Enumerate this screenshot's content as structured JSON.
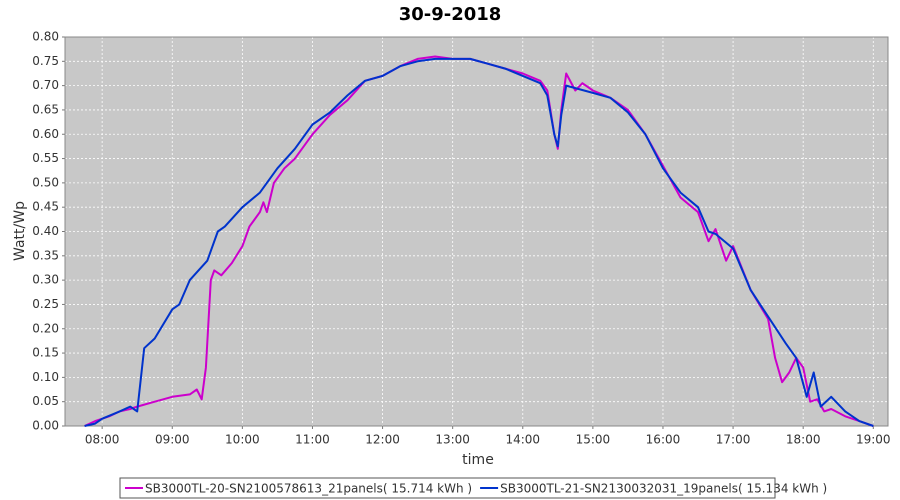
{
  "chart_data": {
    "type": "line",
    "title": "30-9-2018",
    "xlabel": "time",
    "ylabel": "Watt/Wp",
    "xlim": [
      7.47,
      19.21
    ],
    "ylim": [
      0,
      0.8
    ],
    "grid": true,
    "xticks": [
      {
        "value": 8,
        "label": "08:00"
      },
      {
        "value": 9,
        "label": "09:00"
      },
      {
        "value": 10,
        "label": "10:00"
      },
      {
        "value": 11,
        "label": "11:00"
      },
      {
        "value": 12,
        "label": "12:00"
      },
      {
        "value": 13,
        "label": "13:00"
      },
      {
        "value": 14,
        "label": "14:00"
      },
      {
        "value": 15,
        "label": "15:00"
      },
      {
        "value": 16,
        "label": "16:00"
      },
      {
        "value": 17,
        "label": "17:00"
      },
      {
        "value": 18,
        "label": "18:00"
      },
      {
        "value": 19,
        "label": "19:00"
      }
    ],
    "yticks": [
      {
        "value": 0,
        "label": "0.00"
      },
      {
        "value": 0.05,
        "label": "0.05"
      },
      {
        "value": 0.1,
        "label": "0.10"
      },
      {
        "value": 0.15,
        "label": "0.15"
      },
      {
        "value": 0.2,
        "label": "0.20"
      },
      {
        "value": 0.25,
        "label": "0.25"
      },
      {
        "value": 0.3,
        "label": "0.30"
      },
      {
        "value": 0.35,
        "label": "0.35"
      },
      {
        "value": 0.4,
        "label": "0.40"
      },
      {
        "value": 0.45,
        "label": "0.45"
      },
      {
        "value": 0.5,
        "label": "0.50"
      },
      {
        "value": 0.55,
        "label": "0.55"
      },
      {
        "value": 0.6,
        "label": "0.60"
      },
      {
        "value": 0.65,
        "label": "0.65"
      },
      {
        "value": 0.7,
        "label": "0.70"
      },
      {
        "value": 0.75,
        "label": "0.75"
      },
      {
        "value": 0.8,
        "label": "0.80"
      }
    ],
    "series": [
      {
        "name": "SB3000TL-20-SN2100578613_21panels( 15.714 kWh )",
        "color": "#cc00cc",
        "x": [
          7.75,
          7.9,
          8.0,
          8.1,
          8.25,
          8.4,
          8.5,
          8.75,
          9.0,
          9.25,
          9.35,
          9.42,
          9.48,
          9.55,
          9.6,
          9.7,
          9.85,
          10.0,
          10.1,
          10.25,
          10.3,
          10.35,
          10.45,
          10.6,
          10.75,
          11.0,
          11.25,
          11.5,
          11.75,
          12.0,
          12.25,
          12.5,
          12.75,
          13.0,
          13.25,
          13.5,
          13.75,
          14.0,
          14.25,
          14.35,
          14.45,
          14.5,
          14.55,
          14.62,
          14.75,
          14.85,
          15.0,
          15.25,
          15.5,
          15.75,
          16.0,
          16.25,
          16.5,
          16.65,
          16.75,
          16.9,
          17.0,
          17.25,
          17.5,
          17.6,
          17.7,
          17.8,
          17.9,
          18.0,
          18.1,
          18.2,
          18.3,
          18.4,
          18.6,
          18.8,
          19.0
        ],
        "values": [
          0.0,
          0.01,
          0.015,
          0.02,
          0.03,
          0.035,
          0.04,
          0.05,
          0.06,
          0.065,
          0.075,
          0.055,
          0.12,
          0.3,
          0.32,
          0.31,
          0.335,
          0.37,
          0.41,
          0.44,
          0.46,
          0.44,
          0.5,
          0.53,
          0.55,
          0.6,
          0.64,
          0.67,
          0.71,
          0.72,
          0.74,
          0.755,
          0.76,
          0.755,
          0.755,
          0.745,
          0.735,
          0.725,
          0.71,
          0.69,
          0.6,
          0.57,
          0.65,
          0.725,
          0.69,
          0.705,
          0.69,
          0.675,
          0.65,
          0.6,
          0.535,
          0.47,
          0.44,
          0.38,
          0.405,
          0.34,
          0.37,
          0.28,
          0.22,
          0.14,
          0.09,
          0.11,
          0.14,
          0.12,
          0.05,
          0.055,
          0.03,
          0.035,
          0.02,
          0.01,
          0.0
        ]
      },
      {
        "name": "SB3000TL-21-SN2130032031_19panels( 15.134 kWh )",
        "color": "#0033cc",
        "x": [
          7.75,
          7.9,
          8.0,
          8.25,
          8.4,
          8.5,
          8.6,
          8.75,
          9.0,
          9.1,
          9.25,
          9.5,
          9.65,
          9.75,
          10.0,
          10.25,
          10.5,
          10.75,
          11.0,
          11.25,
          11.5,
          11.75,
          12.0,
          12.25,
          12.5,
          12.75,
          13.0,
          13.25,
          13.5,
          13.75,
          14.0,
          14.25,
          14.35,
          14.45,
          14.5,
          14.55,
          14.62,
          14.75,
          15.0,
          15.25,
          15.5,
          15.75,
          16.0,
          16.25,
          16.5,
          16.65,
          16.75,
          17.0,
          17.25,
          17.5,
          17.75,
          17.9,
          18.05,
          18.15,
          18.25,
          18.4,
          18.6,
          18.8,
          19.0
        ],
        "values": [
          0.0,
          0.005,
          0.015,
          0.03,
          0.04,
          0.03,
          0.16,
          0.18,
          0.24,
          0.25,
          0.3,
          0.34,
          0.4,
          0.41,
          0.45,
          0.48,
          0.53,
          0.57,
          0.62,
          0.645,
          0.68,
          0.71,
          0.72,
          0.74,
          0.75,
          0.755,
          0.755,
          0.755,
          0.745,
          0.735,
          0.72,
          0.705,
          0.68,
          0.6,
          0.575,
          0.64,
          0.7,
          0.695,
          0.685,
          0.675,
          0.645,
          0.6,
          0.53,
          0.48,
          0.45,
          0.4,
          0.395,
          0.365,
          0.28,
          0.225,
          0.17,
          0.14,
          0.06,
          0.11,
          0.04,
          0.06,
          0.03,
          0.01,
          0.0
        ]
      }
    ]
  }
}
